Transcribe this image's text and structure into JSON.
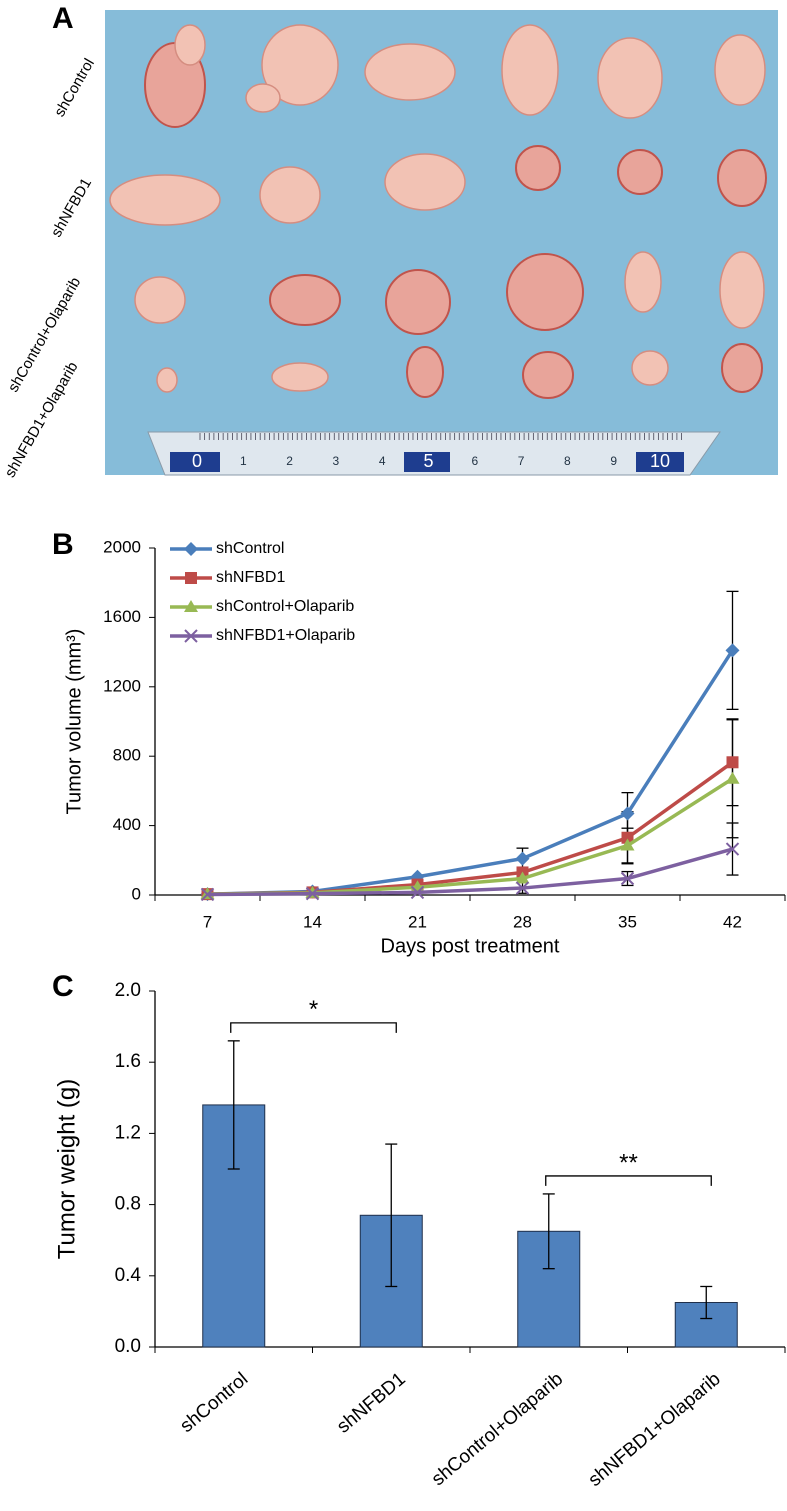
{
  "panels": [
    "A",
    "B",
    "C"
  ],
  "photo": {
    "row_labels": [
      "shControl",
      "shNFBD1",
      "shControl+Olaparib",
      "shNFBD1+Olaparib"
    ],
    "ruler_labels": [
      "0",
      "1",
      "2",
      "3",
      "4",
      "5",
      "6",
      "7",
      "8",
      "9",
      "10"
    ]
  },
  "chart_data": [
    {
      "type": "line",
      "x_label": "Days post treatment",
      "y_label": "Tumor volume (mm³)",
      "categories": [
        "7",
        "14",
        "21",
        "28",
        "35",
        "42"
      ],
      "ylim": [
        0,
        2000
      ],
      "yticks": [
        0,
        400,
        800,
        1200,
        1600,
        2000
      ],
      "legend": "top-left",
      "series": [
        {
          "name": "shControl",
          "color": "#4a7ebb",
          "marker": "diamond",
          "values": [
            5,
            20,
            105,
            210,
            470,
            1410
          ],
          "errors": [
            null,
            null,
            null,
            60,
            120,
            340
          ]
        },
        {
          "name": "shNFBD1",
          "color": "#be4b48",
          "marker": "square",
          "values": [
            5,
            15,
            60,
            130,
            330,
            765
          ],
          "errors": [
            null,
            null,
            null,
            null,
            150,
            250
          ]
        },
        {
          "name": "shControl+Olaparib",
          "color": "#98b954",
          "marker": "triangle",
          "values": [
            5,
            12,
            45,
            95,
            285,
            670
          ],
          "errors": [
            null,
            null,
            null,
            null,
            100,
            340
          ]
        },
        {
          "name": "shNFBD1+Olaparib",
          "color": "#7d60a0",
          "marker": "x",
          "values": [
            3,
            8,
            15,
            40,
            95,
            265
          ],
          "errors": [
            null,
            null,
            null,
            30,
            40,
            150
          ]
        }
      ]
    },
    {
      "type": "bar",
      "y_label": "Tumor weight (g)",
      "categories": [
        "shControl",
        "shNFBD1",
        "shControl+Olaparib",
        "shNFBD1+Olaparib"
      ],
      "values": [
        1.36,
        0.74,
        0.65,
        0.25
      ],
      "errors": [
        0.36,
        0.4,
        0.21,
        0.09
      ],
      "color": "#4f81bd",
      "ylim": [
        0,
        2
      ],
      "yticks": [
        {
          "value": 0,
          "label": "0.0"
        },
        0.4,
        0.8,
        1.2,
        1.6,
        {
          "value": 2,
          "label": "2.0"
        }
      ],
      "annotations": [
        {
          "text": "*",
          "from": "shControl",
          "to": "shNFBD1"
        },
        {
          "text": "**",
          "from": "shControl+Olaparib",
          "to": "shNFBD1+Olaparib"
        }
      ]
    }
  ]
}
